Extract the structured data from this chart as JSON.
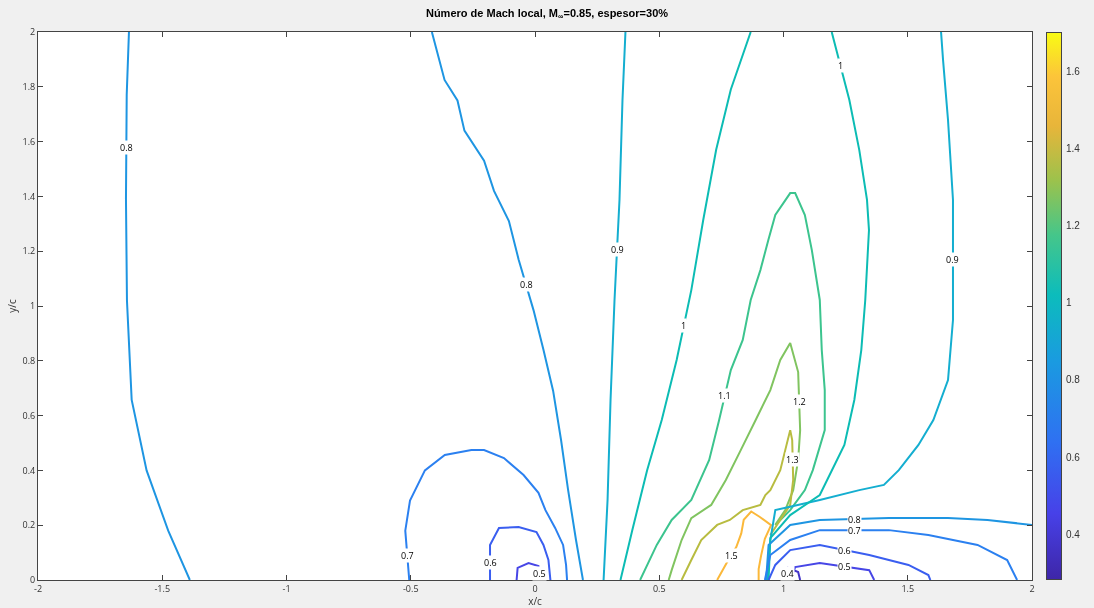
{
  "chart_data": {
    "type": "line",
    "title": "Número de Mach local, M$_{∞}$=0.85, espesor=30%",
    "xlabel": "x/c",
    "ylabel": "y/c",
    "xlim": [
      -2,
      2
    ],
    "xticks": [
      -2,
      -1.5,
      -1,
      -0.5,
      0,
      0.5,
      1,
      1.5,
      2
    ],
    "ylim": [
      0,
      2
    ],
    "yticks": [
      0,
      0.2,
      0.4,
      0.6,
      0.8,
      1,
      1.2,
      1.4,
      1.6,
      1.8,
      2
    ],
    "clim": [
      0.28,
      1.7
    ],
    "cticks": [
      0.4,
      0.6,
      0.8,
      1,
      1.2,
      1.4,
      1.6
    ],
    "grid": false,
    "legend": false,
    "series": [
      {
        "name": "0.8",
        "color": "#1e95e2",
        "x": [
          -1.634,
          -1.643,
          -1.646,
          -1.642,
          -1.623,
          -1.563,
          -1.476,
          -1.389
        ],
        "values": [
          2,
          1.77,
          1.39,
          1.02,
          0.657,
          0.4,
          0.18,
          0
        ]
      },
      {
        "name": "0.8",
        "color": "#1e95e2",
        "x": [
          -0.415,
          -0.364,
          -0.312,
          -0.284,
          -0.205,
          -0.165,
          -0.105,
          -0.066,
          -0.006,
          0.034,
          0.073,
          0.105,
          0.133,
          0.165,
          0.193
        ],
        "values": [
          2,
          1.825,
          1.75,
          1.64,
          1.53,
          1.42,
          1.31,
          1.17,
          0.985,
          0.84,
          0.69,
          0.51,
          0.33,
          0.146,
          0
        ]
      },
      {
        "name": "0.7",
        "color": "#2b80f0",
        "x": [
          -0.506,
          -0.522,
          -0.503,
          -0.443,
          -0.363,
          -0.256,
          -0.205,
          -0.125,
          -0.046,
          0.014,
          0.042,
          0.081,
          0.113,
          0.125,
          0.129
        ],
        "values": [
          0,
          0.18,
          0.29,
          0.4,
          0.456,
          0.474,
          0.474,
          0.445,
          0.383,
          0.318,
          0.255,
          0.19,
          0.128,
          0.055,
          0
        ]
      },
      {
        "name": "0.6",
        "color": "#3a5ef0",
        "x": [
          -0.181,
          -0.181,
          -0.145,
          -0.066,
          0.006,
          0.034,
          0.054,
          0.062
        ],
        "values": [
          0,
          0.128,
          0.19,
          0.193,
          0.175,
          0.128,
          0.073,
          0
        ]
      },
      {
        "name": "0.5",
        "color": "#4746e6",
        "x": [
          -0.074,
          -0.07,
          -0.026,
          0.014,
          0.022
        ],
        "values": [
          0,
          0.044,
          0.062,
          0.051,
          0
        ]
      },
      {
        "name": "0.9",
        "color": "#14aed0",
        "x": [
          0.364,
          0.352,
          0.34,
          0.32,
          0.304,
          0.292,
          0.276
        ],
        "values": [
          2,
          1.75,
          1.387,
          1.022,
          0.657,
          0.292,
          0
        ]
      },
      {
        "name": "1",
        "color": "#0cbcb4",
        "x": [
          0.868,
          0.788,
          0.729,
          0.677,
          0.629,
          0.57,
          0.51,
          0.451,
          0.391,
          0.344
        ],
        "values": [
          2,
          1.79,
          1.57,
          1.314,
          1.058,
          0.803,
          0.584,
          0.4,
          0.18,
          0
        ]
      },
      {
        "name": "1.1",
        "color": "#3cc48e",
        "x": [
          0.423,
          0.49,
          0.55,
          0.629,
          0.701,
          0.741,
          0.788,
          0.836,
          0.868,
          0.907,
          0.939,
          0.967,
          1.027,
          1.047,
          1.086,
          1.114,
          1.146,
          1.154,
          1.166,
          1.166,
          1.118,
          1.086,
          1.027,
          0.967
        ],
        "values": [
          0,
          0.128,
          0.219,
          0.292,
          0.438,
          0.584,
          0.766,
          0.876,
          1.022,
          1.131,
          1.241,
          1.332,
          1.412,
          1.412,
          1.332,
          1.204,
          1.022,
          0.839,
          0.693,
          0.547,
          0.401,
          0.328,
          0.255,
          0.201
        ]
      },
      {
        "name": "1.2",
        "color": "#80c460",
        "x": [
          0.538,
          0.55,
          0.59,
          0.629,
          0.709,
          0.768,
          0.828,
          0.888,
          0.947,
          0.987,
          1.027,
          1.059,
          1.067,
          1.059,
          1.039,
          1.007,
          0.967
        ],
        "values": [
          0,
          0.036,
          0.146,
          0.226,
          0.274,
          0.365,
          0.474,
          0.584,
          0.693,
          0.803,
          0.865,
          0.759,
          0.547,
          0.438,
          0.328,
          0.255,
          0.201
        ]
      },
      {
        "name": "1.3",
        "color": "#b8bc40",
        "x": [
          0.59,
          0.629,
          0.669,
          0.733,
          0.784,
          0.836,
          0.907,
          0.927,
          0.947,
          0.987,
          1.007,
          1.027,
          1.035,
          1.039,
          1.027,
          0.987,
          0.947
        ],
        "values": [
          0,
          0.073,
          0.146,
          0.201,
          0.219,
          0.255,
          0.274,
          0.31,
          0.328,
          0.401,
          0.474,
          0.547,
          0.511,
          0.365,
          0.274,
          0.219,
          0.164
        ]
      },
      {
        "name": "1.5",
        "color": "#fbb83a",
        "x": [
          0.733,
          0.77,
          0.81,
          0.83,
          0.84,
          0.87,
          0.905,
          0.95,
          0.925,
          0.91,
          0.9,
          0.9
        ],
        "values": [
          0,
          0.06,
          0.12,
          0.17,
          0.22,
          0.25,
          0.23,
          0.2,
          0.15,
          0.09,
          0.04,
          0
        ]
      },
      {
        "name": "0.9",
        "color": "#14aed0",
        "x": [
          0.935,
          0.947,
          0.967,
          1.146,
          1.305,
          1.404,
          1.464,
          1.543,
          1.603,
          1.662,
          1.682,
          1.682,
          1.662,
          1.642,
          1.634
        ],
        "values": [
          0,
          0.146,
          0.255,
          0.292,
          0.328,
          0.347,
          0.401,
          0.493,
          0.584,
          0.73,
          0.949,
          1.387,
          1.679,
          1.898,
          2
        ]
      },
      {
        "name": "1",
        "color": "#0cbcb4",
        "x": [
          0.94,
          0.947,
          1.027,
          1.146,
          1.245,
          1.285,
          1.313,
          1.329,
          1.344,
          1.336,
          1.305,
          1.265,
          1.194
        ],
        "values": [
          0,
          0.153,
          0.237,
          0.31,
          0.493,
          0.657,
          0.839,
          1.022,
          1.277,
          1.387,
          1.569,
          1.752,
          2
        ]
      },
      {
        "name": "0.8",
        "color": "#1e95e2",
        "x": [
          0.93,
          0.94,
          1.027,
          1.146,
          1.424,
          1.662,
          1.821,
          2
        ],
        "values": [
          0,
          0.128,
          0.201,
          0.219,
          0.226,
          0.226,
          0.219,
          0.201
        ]
      },
      {
        "name": "0.7",
        "color": "#2b80f0",
        "x": [
          0.925,
          0.947,
          1.027,
          1.146,
          1.424,
          1.583,
          1.781,
          1.9,
          1.94
        ],
        "values": [
          0,
          0.091,
          0.146,
          0.182,
          0.182,
          0.164,
          0.128,
          0.073,
          0
        ]
      },
      {
        "name": "0.6",
        "color": "#3a5ef0",
        "x": [
          0.94,
          0.967,
          1.027,
          1.146,
          1.345,
          1.503,
          1.583,
          1.591
        ],
        "values": [
          0,
          0.055,
          0.109,
          0.128,
          0.091,
          0.055,
          0.018,
          0
        ]
      },
      {
        "name": "0.5",
        "color": "#4746e6",
        "x": [
          1.027,
          1.047,
          1.146,
          1.345,
          1.365
        ],
        "values": [
          0,
          0.047,
          0.062,
          0.036,
          0
        ]
      },
      {
        "name": "0.4",
        "color": "#4233c8",
        "x": [
          1.015,
          1.019,
          1.059,
          1.067
        ],
        "values": [
          0,
          0.044,
          0.029,
          0
        ]
      }
    ]
  }
}
